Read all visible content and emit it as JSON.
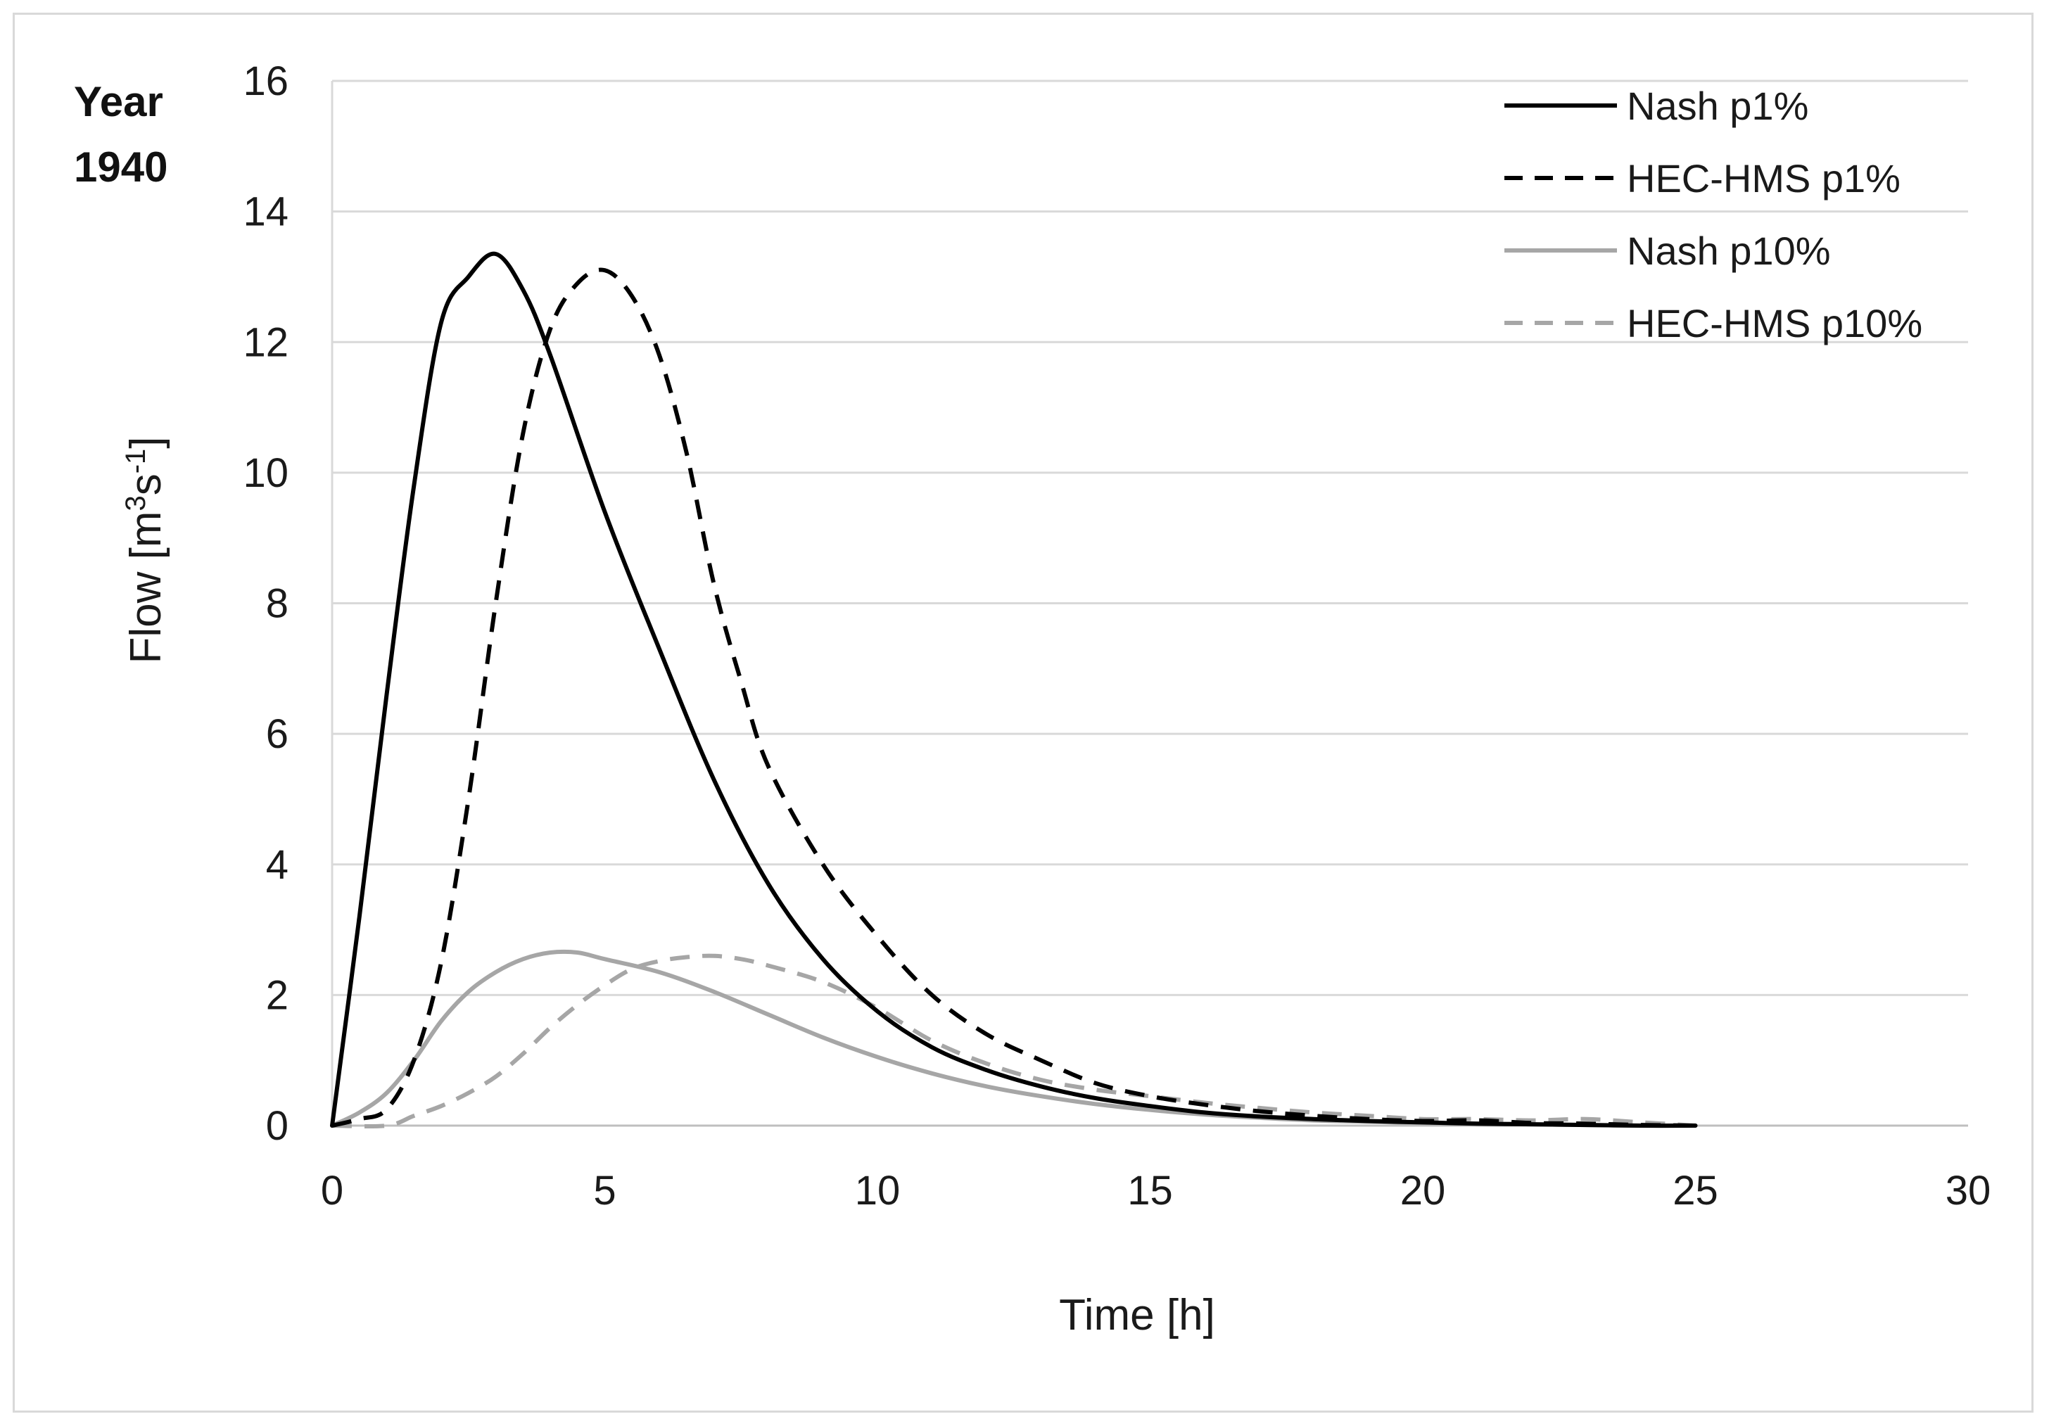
{
  "chart_data": {
    "type": "line",
    "title": "",
    "annotation": {
      "line1": "Year",
      "line2": "1940"
    },
    "xlabel": "Time [h]",
    "ylabel": {
      "prefix": "Flow [m",
      "sup1": "3",
      "mid": "s",
      "sup2": "-1",
      "suffix": "]"
    },
    "xlim": [
      0,
      30
    ],
    "ylim": [
      0,
      16
    ],
    "xticks": [
      0,
      5,
      10,
      15,
      20,
      25,
      30
    ],
    "yticks": [
      0,
      2,
      4,
      6,
      8,
      10,
      12,
      14,
      16
    ],
    "grid": "horizontal",
    "legend_position": "top-right",
    "series": [
      {
        "name": "Nash p1%",
        "color": "#000000",
        "dash": "solid",
        "x": [
          0,
          0.5,
          1,
          1.5,
          2,
          2.5,
          3,
          3.5,
          4,
          5,
          6,
          7,
          8,
          9,
          10,
          11,
          12,
          13,
          14,
          15,
          16,
          17,
          18,
          19,
          20,
          21,
          22,
          23,
          24,
          25
        ],
        "y": [
          0,
          3.2,
          6.6,
          9.8,
          12.3,
          13.0,
          13.35,
          12.8,
          11.8,
          9.4,
          7.3,
          5.3,
          3.7,
          2.55,
          1.75,
          1.2,
          0.85,
          0.6,
          0.42,
          0.3,
          0.2,
          0.14,
          0.1,
          0.07,
          0.05,
          0.03,
          0.02,
          0.01,
          0.0,
          0.0
        ]
      },
      {
        "name": "HEC-HMS p1%",
        "color": "#000000",
        "dash": "dashed",
        "x": [
          0,
          0.5,
          1,
          1.5,
          2,
          2.5,
          3,
          3.5,
          4,
          4.5,
          5,
          5.5,
          6,
          6.5,
          7,
          7.5,
          8,
          9,
          10,
          11,
          12,
          13,
          14,
          15,
          16,
          17,
          18,
          19,
          20,
          21,
          22,
          23,
          24,
          25
        ],
        "y": [
          0,
          0.1,
          0.25,
          1.0,
          2.5,
          5.0,
          8.0,
          10.6,
          12.2,
          12.9,
          13.1,
          12.7,
          11.8,
          10.3,
          8.3,
          6.8,
          5.5,
          4.0,
          2.9,
          2.0,
          1.4,
          1.0,
          0.65,
          0.45,
          0.32,
          0.22,
          0.15,
          0.1,
          0.07,
          0.08,
          0.04,
          0.03,
          0.01,
          0.0
        ]
      },
      {
        "name": "Nash p10%",
        "color": "#a6a6a6",
        "dash": "solid",
        "x": [
          0,
          0.5,
          1,
          1.5,
          2,
          2.5,
          3,
          3.5,
          4,
          4.5,
          5,
          6,
          7,
          8,
          9,
          10,
          11,
          12,
          13,
          14,
          15,
          16,
          17,
          18,
          19,
          20,
          21,
          22,
          23,
          24,
          25
        ],
        "y": [
          0,
          0.2,
          0.5,
          1.0,
          1.6,
          2.05,
          2.35,
          2.55,
          2.65,
          2.65,
          2.55,
          2.35,
          2.05,
          1.7,
          1.35,
          1.05,
          0.8,
          0.6,
          0.45,
          0.33,
          0.24,
          0.17,
          0.12,
          0.08,
          0.06,
          0.04,
          0.03,
          0.02,
          0.01,
          0.0,
          0.0
        ]
      },
      {
        "name": "HEC-HMS p10%",
        "color": "#a6a6a6",
        "dash": "dashed",
        "x": [
          0,
          1,
          1.5,
          2,
          2.5,
          3,
          3.5,
          4,
          4.5,
          5,
          5.5,
          6,
          6.5,
          7,
          7.5,
          8,
          9,
          10,
          11,
          12,
          13,
          14,
          15,
          16,
          17,
          18,
          19,
          20,
          21,
          22,
          23,
          24,
          25
        ],
        "y": [
          0,
          0.0,
          0.15,
          0.3,
          0.5,
          0.75,
          1.1,
          1.5,
          1.85,
          2.15,
          2.4,
          2.52,
          2.58,
          2.6,
          2.55,
          2.45,
          2.2,
          1.8,
          1.3,
          0.95,
          0.7,
          0.55,
          0.45,
          0.35,
          0.27,
          0.2,
          0.15,
          0.1,
          0.1,
          0.08,
          0.1,
          0.05,
          0.0
        ]
      }
    ]
  }
}
